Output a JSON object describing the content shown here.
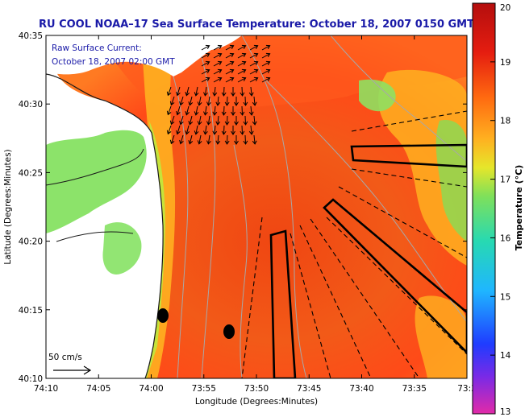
{
  "chart_data": {
    "type": "heatmap",
    "title": "RU COOL  NOAA–17  Sea Surface Temperature:  October 18, 2007 0150 GMT",
    "xlabel": "Longitude (Degrees:Minutes)",
    "ylabel": "Latitude (Degrees:Minutes)",
    "x_ticks": [
      "74:10",
      "74:05",
      "74:00",
      "73:55",
      "73:50",
      "73:45",
      "73:40",
      "73:35",
      "73:3"
    ],
    "y_ticks": [
      "40:35",
      "40:30",
      "40:25",
      "40:20",
      "40:15",
      "40:10"
    ],
    "x_range_minutes_west": [
      4450,
      4410
    ],
    "y_range_minutes_north": [
      2410,
      2435
    ],
    "colorbar": {
      "label": "Temperature (°C)",
      "ticks": [
        "20",
        "19",
        "18",
        "17",
        "16",
        "15",
        "14",
        "13"
      ],
      "range": [
        13,
        20
      ],
      "colors": [
        "#e22aa8",
        "#7a2ae6",
        "#1f3cff",
        "#1fb6ff",
        "#27d9b2",
        "#7fe05a",
        "#e6e62a",
        "#ffb020",
        "#ff6a10",
        "#e51d10",
        "#b40e0e"
      ]
    },
    "annotation": {
      "line1": "Raw Surface Current:",
      "line2": "October 18, 2007 02:00 GMT"
    },
    "scale_vector": "50 cm/s",
    "markers": [
      {
        "lon_min": 4438.8,
        "lat_min": 2414.5
      },
      {
        "lon_min": 4432.3,
        "lat_min": 2413.5
      }
    ]
  }
}
